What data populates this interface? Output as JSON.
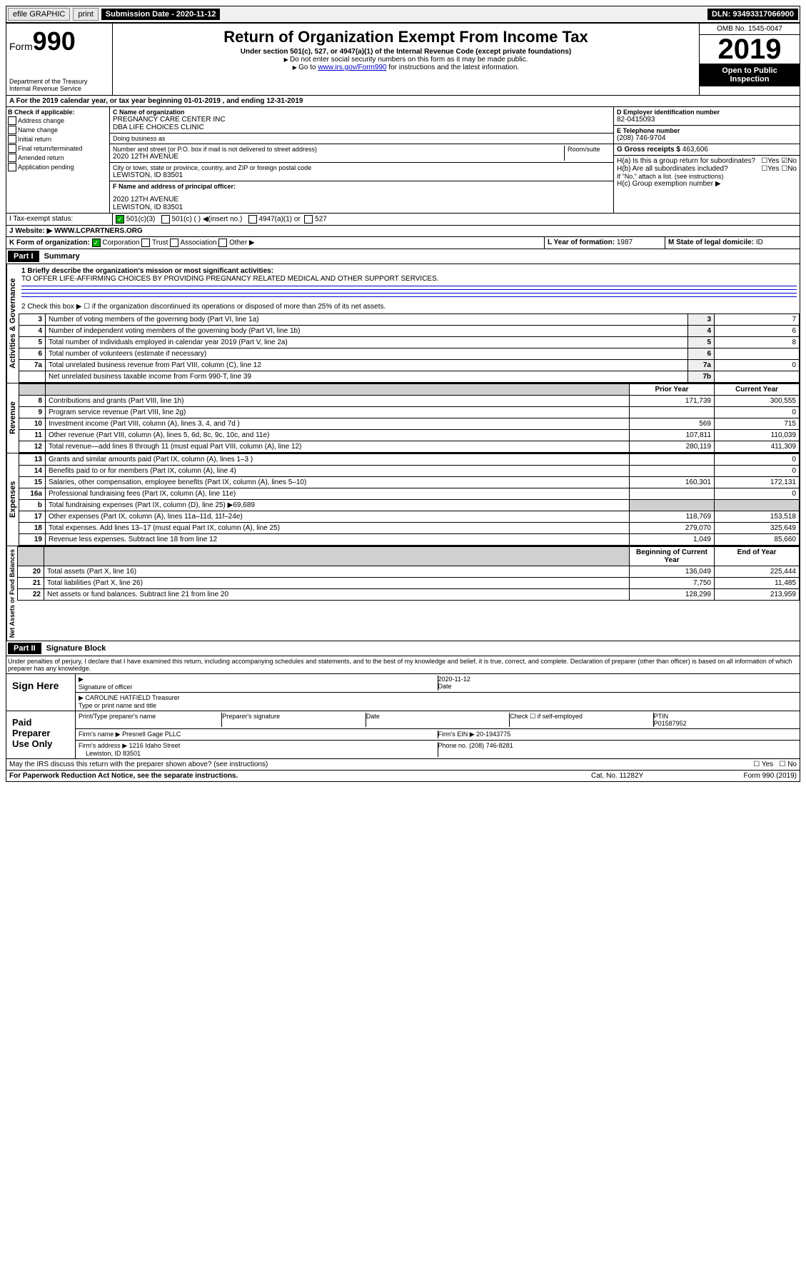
{
  "top": {
    "efile": "efile GRAPHIC",
    "print": "print",
    "submission_label": "Submission Date - 2020-11-12",
    "dln": "DLN: 93493317066900"
  },
  "header_left": {
    "form": "Form",
    "number": "990",
    "dept": "Department of the Treasury",
    "irs": "Internal Revenue Service"
  },
  "header_center": {
    "title": "Return of Organization Exempt From Income Tax",
    "sub": "Under section 501(c), 527, or 4947(a)(1) of the Internal Revenue Code (except private foundations)",
    "note1": "Do not enter social security numbers on this form as it may be made public.",
    "note2_prefix": "Go to ",
    "note2_link": "www.irs.gov/Form990",
    "note2_suffix": " for instructions and the latest information."
  },
  "header_right": {
    "omb": "OMB No. 1545-0047",
    "year": "2019",
    "open": "Open to Public Inspection"
  },
  "period": "A For the 2019 calendar year, or tax year beginning 01-01-2019    , and ending 12-31-2019",
  "section_b": {
    "label": "B Check if applicable:",
    "checks": [
      "Address change",
      "Name change",
      "Initial return",
      "Final return/terminated",
      "Amended return",
      "Application pending"
    ]
  },
  "section_c": {
    "name_label": "C Name of organization",
    "name": "PREGNANCY CARE CENTER INC",
    "dba": "DBA LIFE CHOICES CLINIC",
    "dba_label": "Doing business as",
    "addr_label": "Number and street (or P.O. box if mail is not delivered to street address)",
    "room_label": "Room/suite",
    "addr": "2020 12TH AVENUE",
    "city_label": "City or town, state or province, country, and ZIP or foreign postal code",
    "city": "LEWISTON, ID  83501",
    "officer_label": "F  Name and address of principal officer:",
    "officer_addr1": "2020 12TH AVENUE",
    "officer_addr2": "LEWISTON, ID  83501"
  },
  "section_d": {
    "label": "D Employer identification number",
    "ein": "82-0415093"
  },
  "section_e": {
    "label": "E Telephone number",
    "phone": "(208) 746-9704"
  },
  "section_g": {
    "label": "G Gross receipts $",
    "amount": "463,606"
  },
  "section_h": {
    "ha_label": "H(a)  Is this a group return for subordinates?",
    "hb_label": "H(b)  Are all subordinates included?",
    "hb_note": "If \"No,\" attach a list. (see instructions)",
    "hc_label": "H(c)  Group exemption number"
  },
  "section_i": {
    "label": "I  Tax-exempt status:",
    "opt1": "501(c)(3)",
    "opt2": "501(c) (  )",
    "opt2_note": "(insert no.)",
    "opt3": "4947(a)(1) or",
    "opt4": "527"
  },
  "section_j": {
    "label": "J  Website:",
    "url": "WWW.LCPARTNERS.ORG"
  },
  "section_k": {
    "label": "K Form of organization:",
    "opts": [
      "Corporation",
      "Trust",
      "Association",
      "Other"
    ]
  },
  "section_l": {
    "label": "L Year of formation:",
    "year": "1987"
  },
  "section_m": {
    "label": "M State of legal domicile:",
    "state": "ID"
  },
  "part1": {
    "header": "Part I",
    "title": "Summary",
    "line1_label": "1  Briefly describe the organization's mission or most significant activities:",
    "line1_text": "TO OFFER LIFE-AFFIRMING CHOICES BY PROVIDING PREGNANCY RELATED MEDICAL AND OTHER SUPPORT SERVICES.",
    "line2": "2  Check this box ▶ ☐  if the organization discontinued its operations or disposed of more than 25% of its net assets.",
    "governance": {
      "label": "Activities & Governance",
      "rows": [
        {
          "n": "3",
          "text": "Number of voting members of the governing body (Part VI, line 1a)",
          "box": "3",
          "val": "7"
        },
        {
          "n": "4",
          "text": "Number of independent voting members of the governing body (Part VI, line 1b)",
          "box": "4",
          "val": "6"
        },
        {
          "n": "5",
          "text": "Total number of individuals employed in calendar year 2019 (Part V, line 2a)",
          "box": "5",
          "val": "8"
        },
        {
          "n": "6",
          "text": "Total number of volunteers (estimate if necessary)",
          "box": "6",
          "val": ""
        },
        {
          "n": "7a",
          "text": "Total unrelated business revenue from Part VIII, column (C), line 12",
          "box": "7a",
          "val": "0"
        },
        {
          "n": "",
          "text": "Net unrelated business taxable income from Form 990-T, line 39",
          "box": "7b",
          "val": ""
        }
      ]
    },
    "revenue": {
      "label": "Revenue",
      "col1": "Prior Year",
      "col2": "Current Year",
      "rows": [
        {
          "n": "8",
          "text": "Contributions and grants (Part VIII, line 1h)",
          "p": "171,739",
          "c": "300,555"
        },
        {
          "n": "9",
          "text": "Program service revenue (Part VIII, line 2g)",
          "p": "",
          "c": "0"
        },
        {
          "n": "10",
          "text": "Investment income (Part VIII, column (A), lines 3, 4, and 7d )",
          "p": "569",
          "c": "715"
        },
        {
          "n": "11",
          "text": "Other revenue (Part VIII, column (A), lines 5, 6d, 8c, 9c, 10c, and 11e)",
          "p": "107,811",
          "c": "110,039"
        },
        {
          "n": "12",
          "text": "Total revenue—add lines 8 through 11 (must equal Part VIII, column (A), line 12)",
          "p": "280,119",
          "c": "411,309"
        }
      ]
    },
    "expenses": {
      "label": "Expenses",
      "rows": [
        {
          "n": "13",
          "text": "Grants and similar amounts paid (Part IX, column (A), lines 1–3 )",
          "p": "",
          "c": "0"
        },
        {
          "n": "14",
          "text": "Benefits paid to or for members (Part IX, column (A), line 4)",
          "p": "",
          "c": "0"
        },
        {
          "n": "15",
          "text": "Salaries, other compensation, employee benefits (Part IX, column (A), lines 5–10)",
          "p": "160,301",
          "c": "172,131"
        },
        {
          "n": "16a",
          "text": "Professional fundraising fees (Part IX, column (A), line 11e)",
          "p": "",
          "c": "0"
        },
        {
          "n": "b",
          "text": "Total fundraising expenses (Part IX, column (D), line 25) ▶69,689",
          "p": "shaded",
          "c": "shaded"
        },
        {
          "n": "17",
          "text": "Other expenses (Part IX, column (A), lines 11a–11d, 11f–24e)",
          "p": "118,769",
          "c": "153,518"
        },
        {
          "n": "18",
          "text": "Total expenses. Add lines 13–17 (must equal Part IX, column (A), line 25)",
          "p": "279,070",
          "c": "325,649"
        },
        {
          "n": "19",
          "text": "Revenue less expenses. Subtract line 18 from line 12",
          "p": "1,049",
          "c": "85,660"
        }
      ]
    },
    "netassets": {
      "label": "Net Assets or Fund Balances",
      "col1": "Beginning of Current Year",
      "col2": "End of Year",
      "rows": [
        {
          "n": "20",
          "text": "Total assets (Part X, line 16)",
          "p": "136,049",
          "c": "225,444"
        },
        {
          "n": "21",
          "text": "Total liabilities (Part X, line 26)",
          "p": "7,750",
          "c": "11,485"
        },
        {
          "n": "22",
          "text": "Net assets or fund balances. Subtract line 21 from line 20",
          "p": "128,299",
          "c": "213,959"
        }
      ]
    }
  },
  "part2": {
    "header": "Part II",
    "title": "Signature Block",
    "declaration": "Under penalties of perjury, I declare that I have examined this return, including accompanying schedules and statements, and to the best of my knowledge and belief, it is true, correct, and complete. Declaration of preparer (other than officer) is based on all information of which preparer has any knowledge."
  },
  "sign_here": {
    "label": "Sign Here",
    "sig_label": "Signature of officer",
    "date": "2020-11-12",
    "date_label": "Date",
    "name": "CAROLINE HATFIELD Treasurer",
    "name_label": "Type or print name and title"
  },
  "paid_prep": {
    "label": "Paid Preparer Use Only",
    "print_label": "Print/Type preparer's name",
    "sig_label": "Preparer's signature",
    "date_label": "Date",
    "check_label": "Check ☐ if self-employed",
    "ptin_label": "PTIN",
    "ptin": "P01587952",
    "firm_name_label": "Firm's name",
    "firm_name": "Presnell Gage PLLC",
    "firm_ein_label": "Firm's EIN",
    "firm_ein": "20-1943775",
    "firm_addr_label": "Firm's address",
    "firm_addr1": "1216 Idaho Street",
    "firm_addr2": "Lewiston, ID  83501",
    "phone_label": "Phone no.",
    "phone": "(208) 746-8281"
  },
  "footer": {
    "discuss": "May the IRS discuss this return with the preparer shown above? (see instructions)",
    "paperwork": "For Paperwork Reduction Act Notice, see the separate instructions.",
    "cat": "Cat. No. 11282Y",
    "form": "Form 990 (2019)"
  }
}
